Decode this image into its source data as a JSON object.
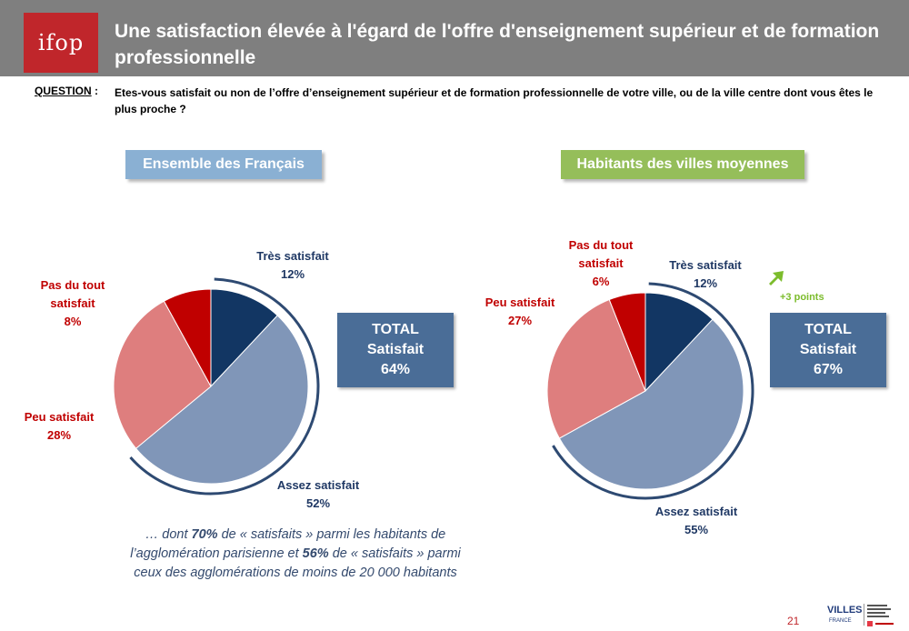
{
  "header": {
    "logo_text": "ifop",
    "title": "Une satisfaction élevée à l'égard de l'offre d'enseignement supérieur et de formation professionnelle"
  },
  "question": {
    "label": "QUESTION",
    "colon": ":",
    "text": "Etes-vous satisfait ou non de l’offre d’enseignement supérieur et de formation professionnelle de votre ville, ou de la ville centre dont vous êtes le plus proche ?"
  },
  "colors": {
    "tres_satisfait": "#123663",
    "assez_satisfait": "#8096b8",
    "peu_satisfait": "#de7e7e",
    "pas_du_tout": "#c00000",
    "label_blue": "#1f3864",
    "label_red": "#c00000",
    "arrow_green": "#7cbc2c"
  },
  "chart_data": [
    {
      "type": "pie",
      "title": "Ensemble des Français",
      "categories": [
        "Très satisfait",
        "Assez satisfait",
        "Peu satisfait",
        "Pas du tout satisfait"
      ],
      "values": [
        12,
        52,
        28,
        8
      ],
      "value_labels": [
        "12%",
        "52%",
        "28%",
        "8%"
      ],
      "total_label": "TOTAL Satisfait",
      "total_value": "64%"
    },
    {
      "type": "pie",
      "title": "Habitants des villes moyennes",
      "categories": [
        "Très satisfait",
        "Assez satisfait",
        "Peu satisfait",
        "Pas du tout satisfait"
      ],
      "values": [
        12,
        55,
        27,
        6
      ],
      "value_labels": [
        "12%",
        "55%",
        "27%",
        "6%"
      ],
      "total_label": "TOTAL Satisfait",
      "total_value": "67%",
      "delta": "+3 points"
    }
  ],
  "labels": {
    "left": {
      "tres_line1": "Très satisfait",
      "tres_value": "12%",
      "assez_line1": "Assez satisfait",
      "assez_value": "52%",
      "peu_line1": "Peu satisfait",
      "peu_value": "28%",
      "pas_line1": "Pas du tout",
      "pas_line2": "satisfait",
      "pas_value": "8%"
    },
    "right": {
      "tres_line1": "Très satisfait",
      "tres_value": "12%",
      "assez_line1": "Assez satisfait",
      "assez_value": "55%",
      "peu_line1": "Peu satisfait",
      "peu_value": "27%",
      "pas_line1": "Pas du tout",
      "pas_line2": "satisfait",
      "pas_value": "6%"
    }
  },
  "total": {
    "left": {
      "line1": "TOTAL",
      "line2": "Satisfait",
      "value": "64%"
    },
    "right": {
      "line1": "TOTAL",
      "line2": "Satisfait",
      "value": "67%"
    }
  },
  "delta_label": "+3 points",
  "note": {
    "p1": "… dont ",
    "b1": "70%",
    "p2": " de « satisfaits » parmi les habitants de l’agglomération parisienne et ",
    "b2": "56%",
    "p3": " de « satisfaits » parmi ceux des agglomérations de moins de 20 000 habitants"
  },
  "footer": {
    "page_number": "21",
    "partner_logo": "villes-de-france-anct-logo"
  }
}
